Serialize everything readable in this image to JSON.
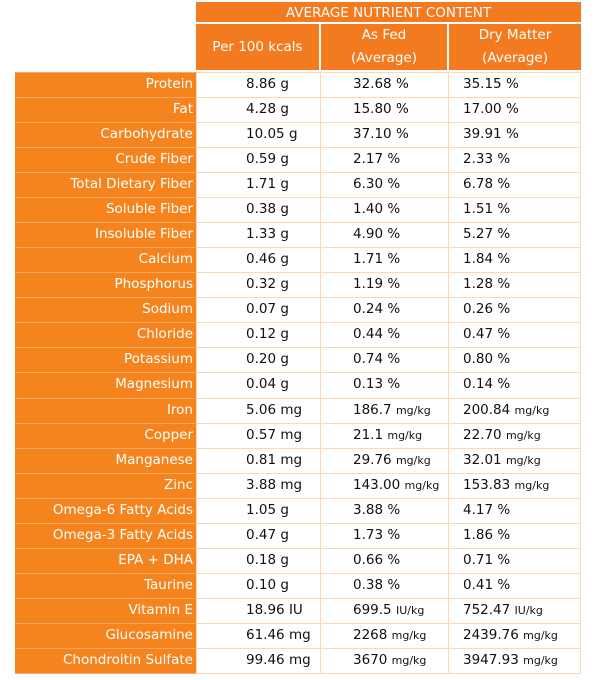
{
  "header": {
    "title": "AVERAGE NUTRIENT CONTENT",
    "col1": "Per 100 kcals",
    "col2_line1": "As Fed",
    "col2_line2": "(Average)",
    "col3_line1": "Dry Matter",
    "col3_line2": "(Average)"
  },
  "rows": [
    {
      "label": "Protein",
      "per100": "8.86 g",
      "asfed_val": "32.68",
      "asfed_unit": "%",
      "dm_val": "35.15",
      "dm_unit": "%"
    },
    {
      "label": "Fat",
      "per100": "4.28 g",
      "asfed_val": "15.80",
      "asfed_unit": "%",
      "dm_val": "17.00",
      "dm_unit": "%"
    },
    {
      "label": "Carbohydrate",
      "per100": "10.05 g",
      "asfed_val": "37.10",
      "asfed_unit": "%",
      "dm_val": "39.91",
      "dm_unit": "%"
    },
    {
      "label": "Crude Fiber",
      "per100": "0.59 g",
      "asfed_val": "2.17",
      "asfed_unit": "%",
      "dm_val": "2.33",
      "dm_unit": "%"
    },
    {
      "label": "Total Dietary Fiber",
      "per100": "1.71 g",
      "asfed_val": "6.30",
      "asfed_unit": "%",
      "dm_val": "6.78",
      "dm_unit": "%"
    },
    {
      "label": "Soluble Fiber",
      "per100": "0.38 g",
      "asfed_val": "1.40",
      "asfed_unit": "%",
      "dm_val": "1.51",
      "dm_unit": "%"
    },
    {
      "label": "Insoluble Fiber",
      "per100": "1.33 g",
      "asfed_val": "4.90",
      "asfed_unit": "%",
      "dm_val": "5.27",
      "dm_unit": "%"
    },
    {
      "label": "Calcium",
      "per100": "0.46 g",
      "asfed_val": "1.71",
      "asfed_unit": "%",
      "dm_val": "1.84",
      "dm_unit": "%"
    },
    {
      "label": "Phosphorus",
      "per100": "0.32 g",
      "asfed_val": "1.19",
      "asfed_unit": "%",
      "dm_val": "1.28",
      "dm_unit": "%"
    },
    {
      "label": "Sodium",
      "per100": "0.07 g",
      "asfed_val": "0.24",
      "asfed_unit": "%",
      "dm_val": "0.26",
      "dm_unit": "%"
    },
    {
      "label": "Chloride",
      "per100": "0.12 g",
      "asfed_val": "0.44",
      "asfed_unit": "%",
      "dm_val": "0.47",
      "dm_unit": "%"
    },
    {
      "label": "Potassium",
      "per100": "0.20 g",
      "asfed_val": "0.74",
      "asfed_unit": "%",
      "dm_val": "0.80",
      "dm_unit": "%"
    },
    {
      "label": "Magnesium",
      "per100": "0.04 g",
      "asfed_val": "0.13",
      "asfed_unit": "%",
      "dm_val": "0.14",
      "dm_unit": "%"
    },
    {
      "label": "Iron",
      "per100": "5.06 mg",
      "asfed_val": "186.7",
      "asfed_unit": "mg/kg",
      "dm_val": "200.84",
      "dm_unit": "mg/kg"
    },
    {
      "label": "Copper",
      "per100": "0.57 mg",
      "asfed_val": "21.1",
      "asfed_unit": "mg/kg",
      "dm_val": "22.70",
      "dm_unit": "mg/kg"
    },
    {
      "label": "Manganese",
      "per100": "0.81 mg",
      "asfed_val": "29.76",
      "asfed_unit": "mg/kg",
      "dm_val": "32.01",
      "dm_unit": "mg/kg"
    },
    {
      "label": "Zinc",
      "per100": "3.88 mg",
      "asfed_val": "143.00",
      "asfed_unit": "mg/kg",
      "dm_val": "153.83",
      "dm_unit": "mg/kg"
    },
    {
      "label": "Omega-6 Fatty Acids",
      "per100": "1.05 g",
      "asfed_val": "3.88",
      "asfed_unit": "%",
      "dm_val": "4.17",
      "dm_unit": "%"
    },
    {
      "label": "Omega-3 Fatty Acids",
      "per100": "0.47 g",
      "asfed_val": "1.73",
      "asfed_unit": "%",
      "dm_val": "1.86",
      "dm_unit": "%"
    },
    {
      "label": "EPA + DHA",
      "per100": "0.18 g",
      "asfed_val": "0.66",
      "asfed_unit": "%",
      "dm_val": "0.71",
      "dm_unit": "%"
    },
    {
      "label": "Taurine",
      "per100": "0.10 g",
      "asfed_val": "0.38",
      "asfed_unit": "%",
      "dm_val": "0.41",
      "dm_unit": "%"
    },
    {
      "label": "Vitamin E",
      "per100": "18.96 IU",
      "asfed_val": "699.5",
      "asfed_unit": "IU/kg",
      "dm_val": "752.47",
      "dm_unit": "IU/kg"
    },
    {
      "label": "Glucosamine",
      "per100": "61.46 mg",
      "asfed_val": "2268",
      "asfed_unit": "mg/kg",
      "dm_val": "2439.76",
      "dm_unit": "mg/kg"
    },
    {
      "label": "Chondroitin Sulfate",
      "per100": "99.46 mg",
      "asfed_val": "3670",
      "asfed_unit": "mg/kg",
      "dm_val": "3947.93",
      "dm_unit": "mg/kg"
    }
  ],
  "colors": {
    "header_bg": "#f37a1f",
    "label_bg": "#f5841f",
    "grid_line": "#ffd8b0"
  }
}
